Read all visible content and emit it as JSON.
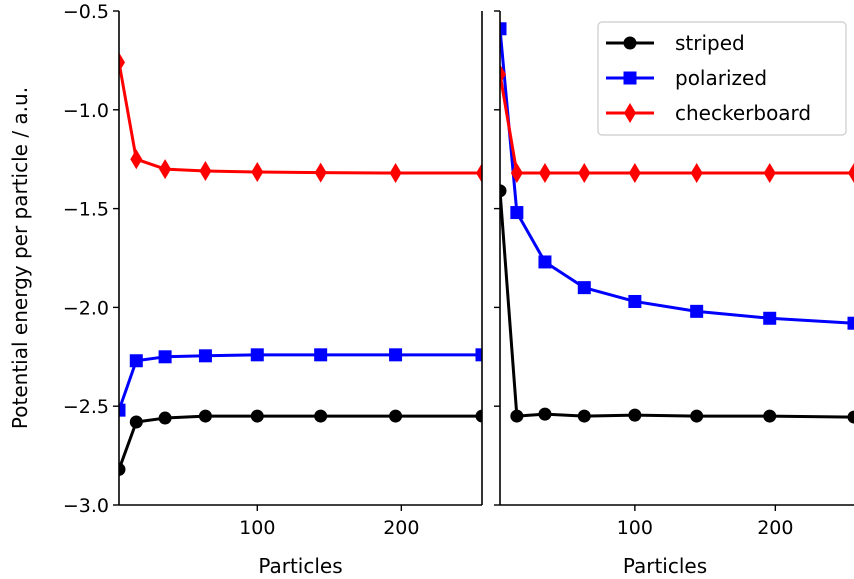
{
  "chart_data": [
    {
      "type": "line",
      "panel": "left",
      "xlabel": "Particles",
      "ylabel": "Potential energy per particle / a.u.",
      "xlim": [
        4,
        256
      ],
      "ylim": [
        -3.0,
        -0.5
      ],
      "xticks": [
        100,
        200
      ],
      "yticks": [
        -3.0,
        -2.5,
        -2.0,
        -1.5,
        -1.0,
        -0.5
      ],
      "ytick_labels": [
        "−3.0",
        "−2.5",
        "−2.0",
        "−1.5",
        "−1.0",
        "−0.5"
      ],
      "grid": false,
      "series": [
        {
          "name": "striped",
          "color": "#000000",
          "marker": "circle",
          "x": [
            4,
            16,
            36,
            64,
            100,
            144,
            196,
            256
          ],
          "y": [
            -2.82,
            -2.58,
            -2.56,
            -2.55,
            -2.55,
            -2.55,
            -2.55,
            -2.55
          ]
        },
        {
          "name": "polarized",
          "color": "#0000ff",
          "marker": "square",
          "x": [
            4,
            16,
            36,
            64,
            100,
            144,
            196,
            256
          ],
          "y": [
            -2.52,
            -2.27,
            -2.25,
            -2.245,
            -2.24,
            -2.24,
            -2.24,
            -2.24
          ]
        },
        {
          "name": "checkerboard",
          "color": "#ff0000",
          "marker": "diamond",
          "x": [
            4,
            16,
            36,
            64,
            100,
            144,
            196,
            256
          ],
          "y": [
            -0.76,
            -1.25,
            -1.3,
            -1.31,
            -1.315,
            -1.318,
            -1.32,
            -1.32
          ]
        }
      ]
    },
    {
      "type": "line",
      "panel": "right",
      "xlabel": "Particles",
      "xlim": [
        4,
        256
      ],
      "ylim": [
        -3.0,
        -0.5
      ],
      "xticks": [
        100,
        200
      ],
      "grid": false,
      "legend_position": "top-right",
      "series": [
        {
          "name": "striped",
          "color": "#000000",
          "marker": "circle",
          "x": [
            4,
            16,
            36,
            64,
            100,
            144,
            196,
            256
          ],
          "y": [
            -1.41,
            -2.55,
            -2.54,
            -2.55,
            -2.545,
            -2.55,
            -2.55,
            -2.555
          ]
        },
        {
          "name": "polarized",
          "color": "#0000ff",
          "marker": "square",
          "x": [
            4,
            16,
            36,
            64,
            100,
            144,
            196,
            256
          ],
          "y": [
            -0.59,
            -1.52,
            -1.77,
            -1.9,
            -1.97,
            -2.02,
            -2.055,
            -2.08
          ]
        },
        {
          "name": "checkerboard",
          "color": "#ff0000",
          "marker": "diamond",
          "x": [
            4,
            16,
            36,
            64,
            100,
            144,
            196,
            256
          ],
          "y": [
            -0.82,
            -1.32,
            -1.32,
            -1.32,
            -1.32,
            -1.32,
            -1.32,
            -1.32
          ]
        }
      ]
    }
  ]
}
